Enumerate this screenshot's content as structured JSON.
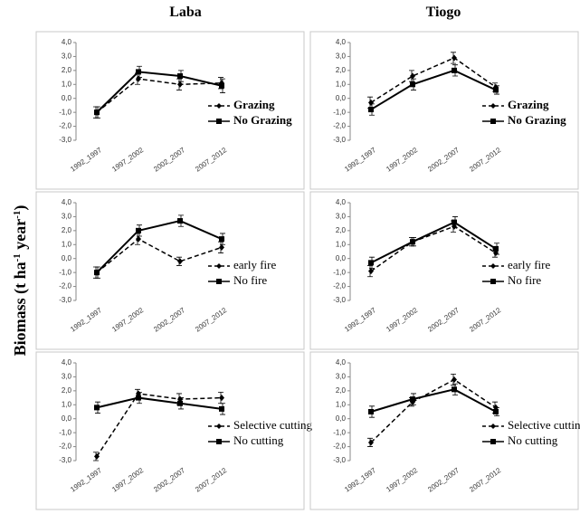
{
  "columns": [
    "Laba",
    "Tiogo"
  ],
  "ylabel": [
    "Biomass (t ha",
    "-1",
    "  year",
    "-1",
    ")"
  ],
  "chart_data": [
    {
      "type": "line",
      "categories": [
        "1992_1997",
        "1997_2002",
        "2002_2007",
        "2007_2012"
      ],
      "ylim": [
        -3,
        4
      ],
      "yticks": [
        {
          "value": -3,
          "label": "-3,0"
        },
        {
          "value": -2,
          "label": "-2,0"
        },
        {
          "value": -1,
          "label": "-1,0"
        },
        {
          "value": 0,
          "label": "0,0"
        },
        {
          "value": 1,
          "label": "1,0"
        },
        {
          "value": 2,
          "label": "2,0"
        },
        {
          "value": 3,
          "label": "3,0"
        },
        {
          "value": 4,
          "label": "4,0"
        }
      ],
      "legend_bold": true,
      "series": [
        {
          "name": "Grazing",
          "color": "#000000",
          "dashed": true,
          "marker": "diamond",
          "values": [
            -1.0,
            1.4,
            1.0,
            1.1
          ],
          "errors": [
            0.4,
            0.4,
            0.4,
            0.4
          ]
        },
        {
          "name": "No Grazing",
          "color": "#000000",
          "dashed": false,
          "marker": "square",
          "values": [
            -1.0,
            1.9,
            1.6,
            0.9
          ],
          "errors": [
            0.4,
            0.4,
            0.4,
            0.5
          ]
        }
      ]
    },
    {
      "type": "line",
      "categories": [
        "1992_1997",
        "1997_2002",
        "2002_2007",
        "2007_2012"
      ],
      "ylim": [
        -3,
        4
      ],
      "yticks": [
        {
          "value": -3,
          "label": "-3,0"
        },
        {
          "value": -2,
          "label": "-2,0"
        },
        {
          "value": -1,
          "label": "-1,0"
        },
        {
          "value": 0,
          "label": "0,0"
        },
        {
          "value": 1,
          "label": "1,0"
        },
        {
          "value": 2,
          "label": "2,0"
        },
        {
          "value": 3,
          "label": "3,0"
        },
        {
          "value": 4,
          "label": "4,0"
        }
      ],
      "legend_bold": true,
      "series": [
        {
          "name": "Grazing",
          "color": "#000000",
          "dashed": true,
          "marker": "diamond",
          "values": [
            -0.3,
            1.6,
            2.9,
            0.8
          ],
          "errors": [
            0.4,
            0.4,
            0.4,
            0.3
          ]
        },
        {
          "name": "No Grazing",
          "color": "#000000",
          "dashed": false,
          "marker": "square",
          "values": [
            -0.8,
            1.0,
            2.0,
            0.6
          ],
          "errors": [
            0.4,
            0.4,
            0.4,
            0.3
          ]
        }
      ]
    },
    {
      "type": "line",
      "categories": [
        "1992_1997",
        "1997_2002",
        "2002_2007",
        "2007_2012"
      ],
      "ylim": [
        -3,
        4
      ],
      "yticks": [
        {
          "value": -3,
          "label": "-3,0"
        },
        {
          "value": -2,
          "label": "-2,0"
        },
        {
          "value": -1,
          "label": "-1,0"
        },
        {
          "value": 0,
          "label": "0,0"
        },
        {
          "value": 1,
          "label": "1,0"
        },
        {
          "value": 2,
          "label": "2,0"
        },
        {
          "value": 3,
          "label": "3,0"
        },
        {
          "value": 4,
          "label": "4,0"
        }
      ],
      "legend_bold": false,
      "series": [
        {
          "name": "early fire",
          "color": "#000000",
          "dashed": true,
          "marker": "diamond",
          "values": [
            -1.0,
            1.4,
            -0.2,
            0.8
          ],
          "errors": [
            0.4,
            0.4,
            0.3,
            0.4
          ]
        },
        {
          "name": "No fire",
          "color": "#000000",
          "dashed": false,
          "marker": "square",
          "values": [
            -1.0,
            2.0,
            2.7,
            1.4
          ],
          "errors": [
            0.4,
            0.4,
            0.4,
            0.4
          ]
        }
      ]
    },
    {
      "type": "line",
      "categories": [
        "1992_1997",
        "1997_2002",
        "2002_2007",
        "2007_2012"
      ],
      "ylim": [
        -3,
        4
      ],
      "yticks": [
        {
          "value": -3,
          "label": "-3,0"
        },
        {
          "value": -2,
          "label": "-2,0"
        },
        {
          "value": -1,
          "label": "-1,0"
        },
        {
          "value": 0,
          "label": "0,0"
        },
        {
          "value": 1,
          "label": "1,0"
        },
        {
          "value": 2,
          "label": "2,0"
        },
        {
          "value": 3,
          "label": "3,0"
        },
        {
          "value": 4,
          "label": "4,0"
        }
      ],
      "legend_bold": false,
      "series": [
        {
          "name": "early fire",
          "color": "#000000",
          "dashed": true,
          "marker": "diamond",
          "values": [
            -0.9,
            1.2,
            2.3,
            0.4
          ],
          "errors": [
            0.4,
            0.3,
            0.4,
            0.3
          ]
        },
        {
          "name": "No fire",
          "color": "#000000",
          "dashed": false,
          "marker": "square",
          "values": [
            -0.3,
            1.2,
            2.6,
            0.7
          ],
          "errors": [
            0.4,
            0.3,
            0.4,
            0.4
          ]
        }
      ]
    },
    {
      "type": "line",
      "categories": [
        "1992_1997",
        "1997_2002",
        "2002_2007",
        "2007_2012"
      ],
      "ylim": [
        -3,
        4
      ],
      "yticks": [
        {
          "value": -3,
          "label": "-3,0"
        },
        {
          "value": -2,
          "label": "-2,0"
        },
        {
          "value": -1,
          "label": "-1,0"
        },
        {
          "value": 0,
          "label": "0,0"
        },
        {
          "value": 1,
          "label": "1,0"
        },
        {
          "value": 2,
          "label": "2,0"
        },
        {
          "value": 3,
          "label": "3,0"
        },
        {
          "value": 4,
          "label": "4,0"
        }
      ],
      "legend_bold": false,
      "series": [
        {
          "name": "Selective cutting",
          "color": "#000000",
          "dashed": true,
          "marker": "diamond",
          "values": [
            -2.7,
            1.8,
            1.4,
            1.5
          ],
          "errors": [
            0.3,
            0.3,
            0.4,
            0.4
          ]
        },
        {
          "name": "No cutting",
          "color": "#000000",
          "dashed": false,
          "marker": "square",
          "values": [
            0.8,
            1.5,
            1.1,
            0.7
          ],
          "errors": [
            0.4,
            0.4,
            0.4,
            0.4
          ]
        }
      ]
    },
    {
      "type": "line",
      "categories": [
        "1992_1997",
        "1997_2002",
        "2002_2007",
        "2007_2012"
      ],
      "ylim": [
        -3,
        4
      ],
      "yticks": [
        {
          "value": -3,
          "label": "-3,0"
        },
        {
          "value": -2,
          "label": "-2,0"
        },
        {
          "value": -1,
          "label": "-1,0"
        },
        {
          "value": 0,
          "label": "0,0"
        },
        {
          "value": 1,
          "label": "1,0"
        },
        {
          "value": 2,
          "label": "2,0"
        },
        {
          "value": 3,
          "label": "3,0"
        },
        {
          "value": 4,
          "label": "4,0"
        }
      ],
      "legend_bold": false,
      "series": [
        {
          "name": "Selective cutting",
          "color": "#000000",
          "dashed": true,
          "marker": "diamond",
          "values": [
            -1.7,
            1.2,
            2.8,
            0.8
          ],
          "errors": [
            0.3,
            0.3,
            0.4,
            0.4
          ]
        },
        {
          "name": "No cutting",
          "color": "#000000",
          "dashed": false,
          "marker": "square",
          "values": [
            0.5,
            1.4,
            2.1,
            0.5
          ],
          "errors": [
            0.4,
            0.4,
            0.4,
            0.3
          ]
        }
      ]
    }
  ]
}
